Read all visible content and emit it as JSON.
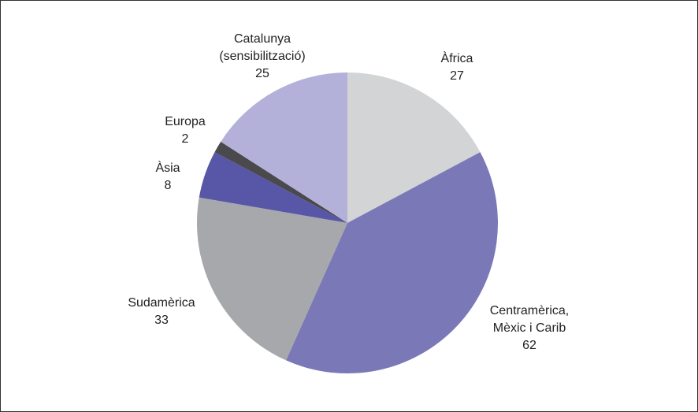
{
  "chart_data": {
    "type": "pie",
    "categories": [
      [
        "Àfrica"
      ],
      [
        "Centramèrica,",
        "Mèxic i Carib"
      ],
      [
        "Sudamèrica"
      ],
      [
        "Àsia"
      ],
      [
        "Europa"
      ],
      [
        "Catalunya",
        "(sensibilització)"
      ]
    ],
    "values": [
      27,
      62,
      33,
      8,
      2,
      25
    ],
    "colors": [
      "#d3d4d6",
      "#7b78b8",
      "#a7a8ab",
      "#5856a6",
      "#4a4a4e",
      "#b3b1d9"
    ]
  }
}
